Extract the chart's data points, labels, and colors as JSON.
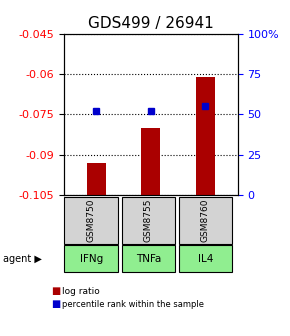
{
  "title": "GDS499 / 26941",
  "samples": [
    "GSM8750",
    "GSM8755",
    "GSM8760"
  ],
  "agents": [
    "IFNg",
    "TNFa",
    "IL4"
  ],
  "log_ratios": [
    -0.093,
    -0.08,
    -0.061
  ],
  "percentile_ranks": [
    52,
    52,
    55
  ],
  "ylim_left": [
    -0.105,
    -0.045
  ],
  "ylim_right": [
    0,
    100
  ],
  "yticks_left": [
    -0.105,
    -0.09,
    -0.075,
    -0.06,
    -0.045
  ],
  "yticks_right": [
    0,
    25,
    50,
    75,
    100
  ],
  "bar_color": "#AA0000",
  "percentile_color": "#0000CC",
  "bar_width": 0.35,
  "agent_bg_color": "#90EE90",
  "sample_bg_color": "#D3D3D3",
  "title_fontsize": 11,
  "tick_fontsize": 8,
  "label_fontsize": 8
}
